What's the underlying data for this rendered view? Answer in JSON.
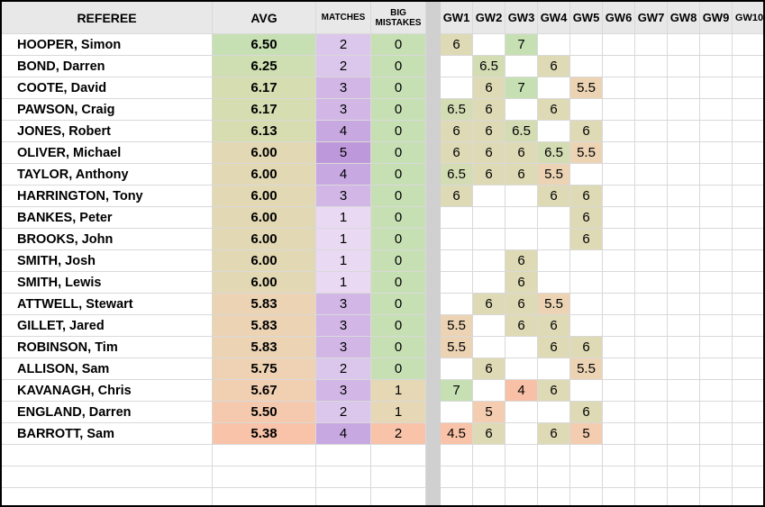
{
  "headers": {
    "referee": "REFEREE",
    "avg": "AVG",
    "matches": "MATCHES",
    "big_mistakes_line1": "BIG",
    "big_mistakes_line2": "MISTAKES",
    "gameweeks": [
      "GW1",
      "GW2",
      "GW3",
      "GW4",
      "GW5",
      "GW6",
      "GW7",
      "GW8",
      "GW9",
      "GW10"
    ]
  },
  "rows": [
    {
      "name": "HOOPER, Simon",
      "avg": "6.50",
      "matches": "2",
      "mistakes": "0",
      "gw": [
        "6",
        "",
        "7",
        "",
        "",
        "",
        "",
        "",
        "",
        ""
      ]
    },
    {
      "name": "BOND, Darren",
      "avg": "6.25",
      "matches": "2",
      "mistakes": "0",
      "gw": [
        "",
        "6.5",
        "",
        "6",
        "",
        "",
        "",
        "",
        "",
        ""
      ]
    },
    {
      "name": "COOTE, David",
      "avg": "6.17",
      "matches": "3",
      "mistakes": "0",
      "gw": [
        "",
        "6",
        "7",
        "",
        "5.5",
        "",
        "",
        "",
        "",
        ""
      ]
    },
    {
      "name": "PAWSON, Craig",
      "avg": "6.17",
      "matches": "3",
      "mistakes": "0",
      "gw": [
        "6.5",
        "6",
        "",
        "6",
        "",
        "",
        "",
        "",
        "",
        ""
      ]
    },
    {
      "name": "JONES, Robert",
      "avg": "6.13",
      "matches": "4",
      "mistakes": "0",
      "gw": [
        "6",
        "6",
        "6.5",
        "",
        "6",
        "",
        "",
        "",
        "",
        ""
      ]
    },
    {
      "name": "OLIVER, Michael",
      "avg": "6.00",
      "matches": "5",
      "mistakes": "0",
      "gw": [
        "6",
        "6",
        "6",
        "6.5",
        "5.5",
        "",
        "",
        "",
        "",
        ""
      ]
    },
    {
      "name": "TAYLOR, Anthony",
      "avg": "6.00",
      "matches": "4",
      "mistakes": "0",
      "gw": [
        "6.5",
        "6",
        "6",
        "5.5",
        "",
        "",
        "",
        "",
        "",
        ""
      ]
    },
    {
      "name": "HARRINGTON, Tony",
      "avg": "6.00",
      "matches": "3",
      "mistakes": "0",
      "gw": [
        "6",
        "",
        "",
        "6",
        "6",
        "",
        "",
        "",
        "",
        ""
      ]
    },
    {
      "name": "BANKES, Peter",
      "avg": "6.00",
      "matches": "1",
      "mistakes": "0",
      "gw": [
        "",
        "",
        "",
        "",
        "6",
        "",
        "",
        "",
        "",
        ""
      ]
    },
    {
      "name": "BROOKS, John",
      "avg": "6.00",
      "matches": "1",
      "mistakes": "0",
      "gw": [
        "",
        "",
        "",
        "",
        "6",
        "",
        "",
        "",
        "",
        ""
      ]
    },
    {
      "name": "SMITH, Josh",
      "avg": "6.00",
      "matches": "1",
      "mistakes": "0",
      "gw": [
        "",
        "",
        "6",
        "",
        "",
        "",
        "",
        "",
        "",
        ""
      ]
    },
    {
      "name": "SMITH, Lewis",
      "avg": "6.00",
      "matches": "1",
      "mistakes": "0",
      "gw": [
        "",
        "",
        "6",
        "",
        "",
        "",
        "",
        "",
        "",
        ""
      ]
    },
    {
      "name": "ATTWELL, Stewart",
      "avg": "5.83",
      "matches": "3",
      "mistakes": "0",
      "gw": [
        "",
        "6",
        "6",
        "5.5",
        "",
        "",
        "",
        "",
        "",
        ""
      ]
    },
    {
      "name": "GILLET, Jared",
      "avg": "5.83",
      "matches": "3",
      "mistakes": "0",
      "gw": [
        "5.5",
        "",
        "6",
        "6",
        "",
        "",
        "",
        "",
        "",
        ""
      ]
    },
    {
      "name": "ROBINSON, Tim",
      "avg": "5.83",
      "matches": "3",
      "mistakes": "0",
      "gw": [
        "5.5",
        "",
        "",
        "6",
        "6",
        "",
        "",
        "",
        "",
        ""
      ]
    },
    {
      "name": "ALLISON, Sam",
      "avg": "5.75",
      "matches": "2",
      "mistakes": "0",
      "gw": [
        "",
        "6",
        "",
        "",
        "5.5",
        "",
        "",
        "",
        "",
        ""
      ]
    },
    {
      "name": "KAVANAGH, Chris",
      "avg": "5.67",
      "matches": "3",
      "mistakes": "1",
      "gw": [
        "7",
        "",
        "4",
        "6",
        "",
        "",
        "",
        "",
        "",
        ""
      ]
    },
    {
      "name": "ENGLAND, Darren",
      "avg": "5.50",
      "matches": "2",
      "mistakes": "1",
      "gw": [
        "",
        "5",
        "",
        "",
        "6",
        "",
        "",
        "",
        "",
        ""
      ]
    },
    {
      "name": "BARROTT, Sam",
      "avg": "5.38",
      "matches": "4",
      "mistakes": "2",
      "gw": [
        "4.5",
        "6",
        "",
        "6",
        "5",
        "",
        "",
        "",
        "",
        ""
      ]
    }
  ],
  "empty_rows": 3,
  "colors": {
    "header_bg": "#e8e8e8",
    "gap_column": "#d0d0d0",
    "avg_scale": {
      "6.50": "#c6e0b4",
      "6.25": "#cfdfb2",
      "6.17": "#d5ddb1",
      "6.13": "#d8ddb1",
      "6.00": "#e3d8b4",
      "5.83": "#ebd3b4",
      "5.75": "#eed2b3",
      "5.67": "#f1cfb1",
      "5.50": "#f5c9ad",
      "5.38": "#f8c3a8"
    },
    "matches_scale": {
      "1": "#e9d9f2",
      "2": "#dcc7ec",
      "3": "#d2b7e6",
      "4": "#c8a8e1",
      "5": "#bd98da"
    },
    "mistakes_scale": {
      "0": "#c6e0b4",
      "1": "#e6d8b4",
      "2": "#f8c3a8"
    },
    "score_scale": {
      "7": "#c6e0b4",
      "6.5": "#d4dcb4",
      "6": "#dedab5",
      "5.5": "#ebd3b4",
      "5": "#f4ccb0",
      "4.5": "#f8c3a8",
      "4": "#f8c0a6"
    }
  }
}
